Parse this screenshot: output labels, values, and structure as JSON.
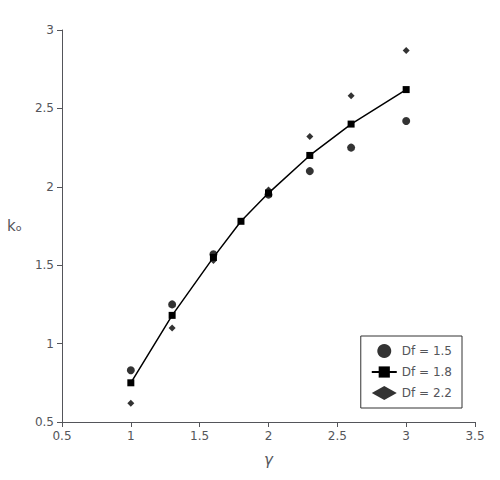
{
  "chart_data": {
    "type": "line",
    "xlabel": "γ",
    "ylabel": "kₒ",
    "xlim": [
      0.5,
      3.5
    ],
    "ylim": [
      0.5,
      3.0
    ],
    "xticks": [
      0.5,
      1.0,
      1.5,
      2.0,
      2.5,
      3.0,
      3.5
    ],
    "yticks": [
      0.5,
      1.0,
      1.5,
      2.0,
      2.5,
      3.0
    ],
    "grid": false,
    "legend": "lower right",
    "series": [
      {
        "name": "Df = 1.5",
        "type": "scatter",
        "marker": "circle",
        "color": "black",
        "x": [
          1.0,
          1.3,
          1.6,
          2.0,
          2.3,
          2.6,
          3.0
        ],
        "values": [
          0.83,
          1.25,
          1.57,
          1.95,
          2.1,
          2.25,
          2.42
        ]
      },
      {
        "name": "Df = 1.8",
        "type": "line",
        "marker": "square",
        "line_style": "solid",
        "color": "black",
        "x": [
          1.0,
          1.3,
          1.6,
          1.8,
          2.0,
          2.3,
          2.6,
          3.0
        ],
        "values": [
          0.75,
          1.18,
          1.55,
          1.78,
          1.96,
          2.2,
          2.4,
          2.62
        ]
      },
      {
        "name": "Df = 2.2",
        "type": "scatter",
        "marker": "diamond",
        "color": "black",
        "x": [
          1.0,
          1.3,
          1.6,
          2.0,
          2.3,
          2.6,
          3.0
        ],
        "values": [
          0.62,
          1.1,
          1.53,
          1.98,
          2.32,
          2.58,
          2.87
        ]
      }
    ]
  }
}
